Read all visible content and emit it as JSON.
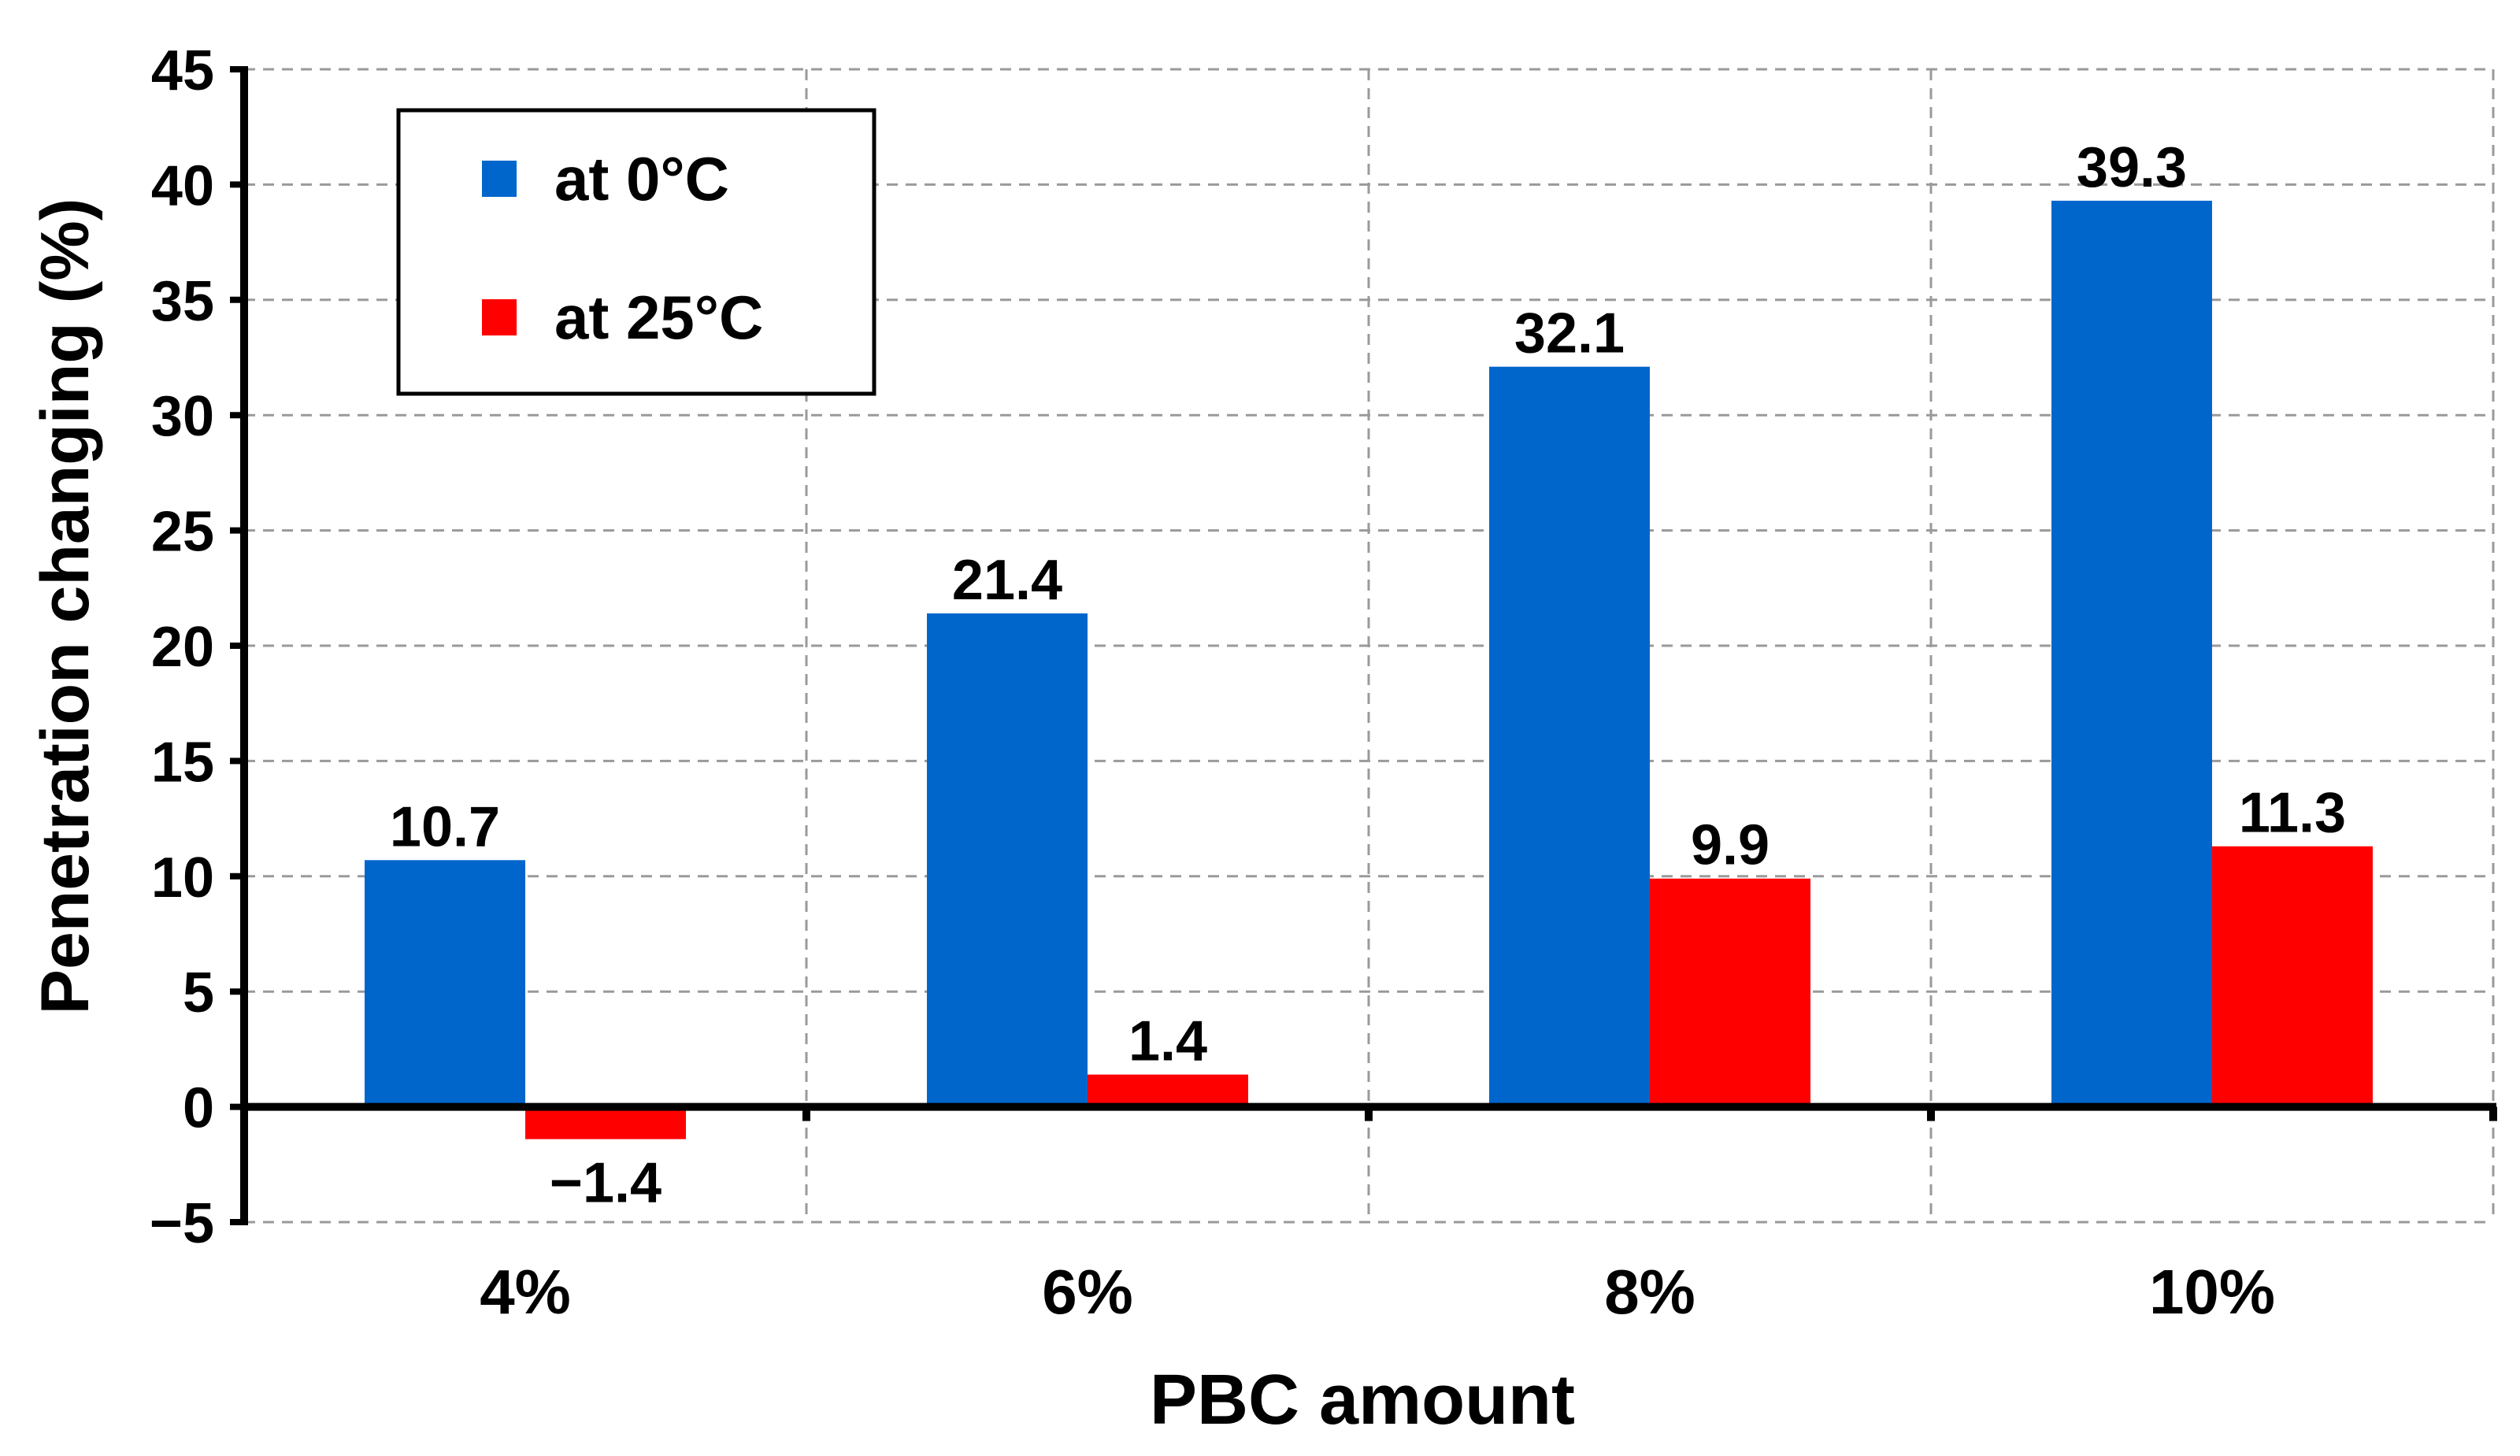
{
  "chart_data": {
    "type": "bar",
    "xlabel": "PBC amount",
    "ylabel": "Penetration changing (%)",
    "categories": [
      "4%",
      "6%",
      "8%",
      "10%"
    ],
    "series": [
      {
        "name": "at 0°C",
        "values": [
          10.7,
          21.4,
          32.1,
          39.3
        ],
        "labels": [
          "10.7",
          "21.4",
          "32.1",
          "39.3"
        ],
        "color": "#0066CC"
      },
      {
        "name": "at 25°C",
        "values": [
          -1.4,
          1.4,
          9.9,
          11.3
        ],
        "labels": [
          "−1.4",
          "1.4",
          "9.9",
          "11.3"
        ],
        "color": "#FF0000"
      }
    ],
    "ylim": [
      -5,
      45
    ],
    "yticks": [
      -5,
      0,
      5,
      10,
      15,
      20,
      25,
      30,
      35,
      40,
      45
    ],
    "ytick_labels": [
      "−5",
      "0",
      "5",
      "10",
      "15",
      "20",
      "25",
      "30",
      "35",
      "40",
      "45"
    ],
    "grid": true,
    "legend_position": "top-left"
  }
}
